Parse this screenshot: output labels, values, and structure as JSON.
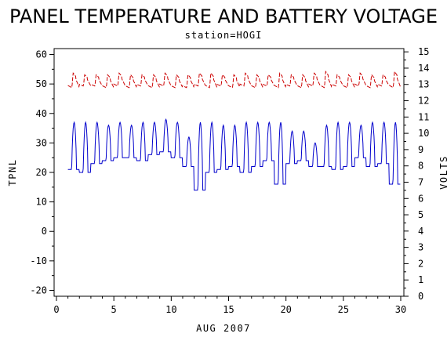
{
  "chart_data": {
    "type": "line",
    "title": "PANEL TEMPERATURE AND BATTERY VOLTAGE",
    "subtitle": "station=HOGI",
    "xlabel": "AUG 2007",
    "ylabel_left": "TPNL",
    "ylabel_right": "VOLTS",
    "xlim": [
      0,
      30
    ],
    "ylim_left": [
      -22,
      62
    ],
    "ylim_right": [
      0,
      15.2
    ],
    "x_ticks": [
      0,
      5,
      10,
      15,
      20,
      25,
      30
    ],
    "y_ticks_left": [
      -20,
      -10,
      0,
      10,
      20,
      30,
      40,
      50,
      60
    ],
    "y_ticks_right": [
      0,
      1,
      2,
      3,
      4,
      5,
      6,
      7,
      8,
      9,
      10,
      11,
      12,
      13,
      14,
      15
    ],
    "grid": false,
    "series": [
      {
        "axis": "left",
        "color": "#0000cc",
        "daily_min": [
          21,
          20,
          23,
          24,
          25,
          25,
          24,
          26,
          27,
          25,
          22,
          14,
          20,
          21,
          22,
          20,
          22,
          24,
          16,
          23,
          24,
          22,
          22,
          21,
          22,
          25,
          22,
          23,
          16
        ],
        "daily_max": [
          37,
          37,
          37,
          36,
          37,
          36,
          37,
          37,
          38,
          37,
          32,
          37,
          37,
          36,
          36,
          37,
          37,
          37,
          37,
          34,
          34,
          30,
          36,
          37,
          37,
          36,
          37,
          37,
          37
        ]
      },
      {
        "axis": "right",
        "color": "#cc0000",
        "daily_min": [
          12.8,
          12.9,
          12.9,
          12.8,
          12.9,
          12.8,
          12.9,
          12.8,
          12.9,
          12.8,
          12.8,
          12.9,
          12.8,
          12.9,
          12.8,
          12.9,
          12.8,
          12.9,
          12.8,
          12.9,
          12.8,
          12.9,
          12.8,
          12.9,
          12.8,
          12.9,
          12.8,
          12.9,
          12.8
        ],
        "daily_max": [
          13.7,
          13.6,
          13.6,
          13.6,
          13.7,
          13.6,
          13.6,
          13.6,
          13.7,
          13.6,
          13.6,
          13.7,
          13.7,
          13.6,
          13.6,
          13.7,
          13.6,
          13.6,
          13.7,
          13.6,
          13.6,
          13.7,
          13.8,
          13.6,
          13.6,
          13.7,
          13.6,
          13.6,
          13.8
        ]
      }
    ],
    "x_start": 1,
    "x_end": 30,
    "samples_per_day": 24
  }
}
